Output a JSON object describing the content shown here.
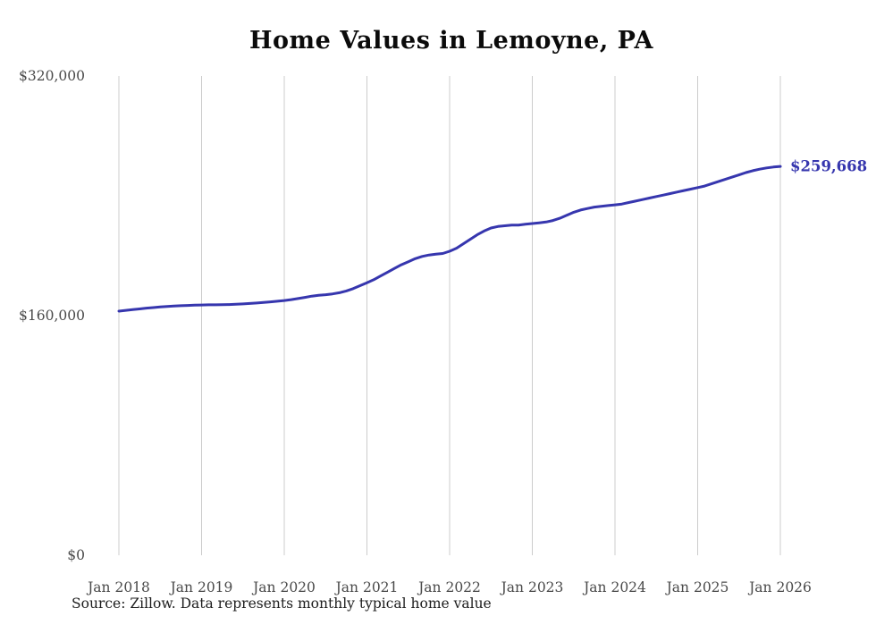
{
  "page": {
    "source_note": "Source: Zillow. Data represents monthly typical home value"
  },
  "chart_data": {
    "type": "line",
    "title": "Home Values in Lemoyne, PA",
    "series_name": "Typical home value",
    "x_unit": "month",
    "x_start": "2018-01",
    "x_end": "2026-01",
    "x_tick_labels": [
      "Jan 2018",
      "Jan 2019",
      "Jan 2020",
      "Jan 2021",
      "Jan 2022",
      "Jan 2023",
      "Jan 2024",
      "Jan 2025",
      "Jan 2026"
    ],
    "y_ticks": [
      {
        "label": "$0",
        "value": 0
      },
      {
        "label": "$160,000",
        "value": 160000
      },
      {
        "label": "$320,000",
        "value": 320000
      }
    ],
    "ylim": [
      0,
      320000
    ],
    "grid": "vertical-only",
    "legend": "none",
    "line_color": "#3636ae",
    "latest_value": 259668,
    "latest_value_label": "$259,668",
    "months": [
      "2018-01",
      "2018-02",
      "2018-03",
      "2018-04",
      "2018-05",
      "2018-06",
      "2018-07",
      "2018-08",
      "2018-09",
      "2018-10",
      "2018-11",
      "2018-12",
      "2019-01",
      "2019-02",
      "2019-03",
      "2019-04",
      "2019-05",
      "2019-06",
      "2019-07",
      "2019-08",
      "2019-09",
      "2019-10",
      "2019-11",
      "2019-12",
      "2020-01",
      "2020-02",
      "2020-03",
      "2020-04",
      "2020-05",
      "2020-06",
      "2020-07",
      "2020-08",
      "2020-09",
      "2020-10",
      "2020-11",
      "2020-12",
      "2021-01",
      "2021-02",
      "2021-03",
      "2021-04",
      "2021-05",
      "2021-06",
      "2021-07",
      "2021-08",
      "2021-09",
      "2021-10",
      "2021-11",
      "2021-12",
      "2022-01",
      "2022-02",
      "2022-03",
      "2022-04",
      "2022-05",
      "2022-06",
      "2022-07",
      "2022-08",
      "2022-09",
      "2022-10",
      "2022-11",
      "2022-12",
      "2023-01",
      "2023-02",
      "2023-03",
      "2023-04",
      "2023-05",
      "2023-06",
      "2023-07",
      "2023-08",
      "2023-09",
      "2023-10",
      "2023-11",
      "2023-12",
      "2024-01",
      "2024-02",
      "2024-03",
      "2024-04",
      "2024-05",
      "2024-06",
      "2024-07",
      "2024-08",
      "2024-09",
      "2024-10",
      "2024-11",
      "2024-12",
      "2025-01",
      "2025-02",
      "2025-03",
      "2025-04",
      "2025-05",
      "2025-06",
      "2025-07",
      "2025-08",
      "2025-09",
      "2025-10",
      "2025-11",
      "2025-12",
      "2026-01"
    ],
    "values": [
      163000,
      163500,
      164000,
      164500,
      165000,
      165400,
      165800,
      166100,
      166400,
      166600,
      166800,
      167000,
      167100,
      167200,
      167200,
      167300,
      167400,
      167600,
      167800,
      168100,
      168400,
      168800,
      169200,
      169600,
      170100,
      170700,
      171400,
      172200,
      173000,
      173600,
      174000,
      174500,
      175300,
      176500,
      178000,
      180000,
      182000,
      184000,
      186500,
      189000,
      191500,
      194000,
      196000,
      198000,
      199500,
      200500,
      201000,
      201500,
      203000,
      205000,
      208000,
      211000,
      214000,
      216500,
      218500,
      219500,
      220000,
      220500,
      220500,
      221000,
      221500,
      222000,
      222500,
      223500,
      225000,
      227000,
      229000,
      230500,
      231500,
      232500,
      233000,
      233500,
      234000,
      234500,
      235500,
      236500,
      237500,
      238500,
      239500,
      240500,
      241500,
      242500,
      243500,
      244500,
      245500,
      246500,
      248000,
      249500,
      251000,
      252500,
      254000,
      255500,
      256800,
      257800,
      258600,
      259200,
      259668
    ]
  }
}
